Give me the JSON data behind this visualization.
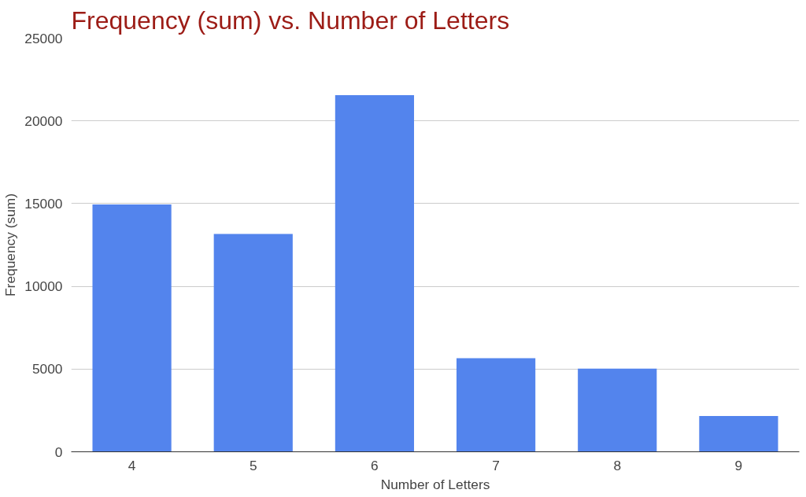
{
  "chart_data": {
    "type": "bar",
    "title": "Frequency (sum) vs. Number of Letters",
    "xlabel": "Number of Letters",
    "ylabel": "Frequency (sum)",
    "categories": [
      "4",
      "5",
      "6",
      "7",
      "8",
      "9"
    ],
    "values": [
      14950,
      13170,
      21560,
      5660,
      5030,
      2160
    ],
    "color": "#5384ed",
    "ylim": [
      0,
      25000
    ],
    "yticks": [
      0,
      5000,
      10000,
      15000,
      20000,
      25000
    ],
    "grid": "y"
  }
}
